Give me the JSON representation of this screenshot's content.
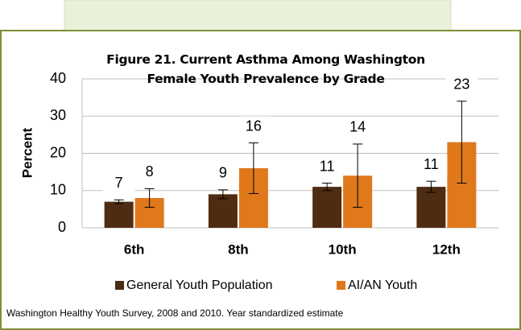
{
  "chart_data": {
    "type": "bar",
    "title": "Figure 21. Current Asthma Among Washington Female Youth Prevalence by Grade",
    "ylabel": "Percent",
    "categories": [
      "6th",
      "8th",
      "10th",
      "12th"
    ],
    "series": [
      {
        "name": "General Youth Population",
        "color": "#4e2c12",
        "values": [
          7,
          9,
          11,
          11
        ],
        "errors": [
          0.5,
          1.2,
          1,
          1.5
        ]
      },
      {
        "name": "AI/AN Youth",
        "color": "#e0781c",
        "values": [
          8,
          16,
          14,
          23
        ],
        "errors": [
          2.5,
          6.8,
          8.5,
          11
        ]
      }
    ],
    "ylim": [
      0,
      40
    ],
    "yticks": [
      0,
      10,
      20,
      30,
      40
    ],
    "grid": true,
    "legend": "bottom",
    "footnote": "Washington Healthy Youth Survey, 2008 and 2010. Year standardized estimate"
  }
}
